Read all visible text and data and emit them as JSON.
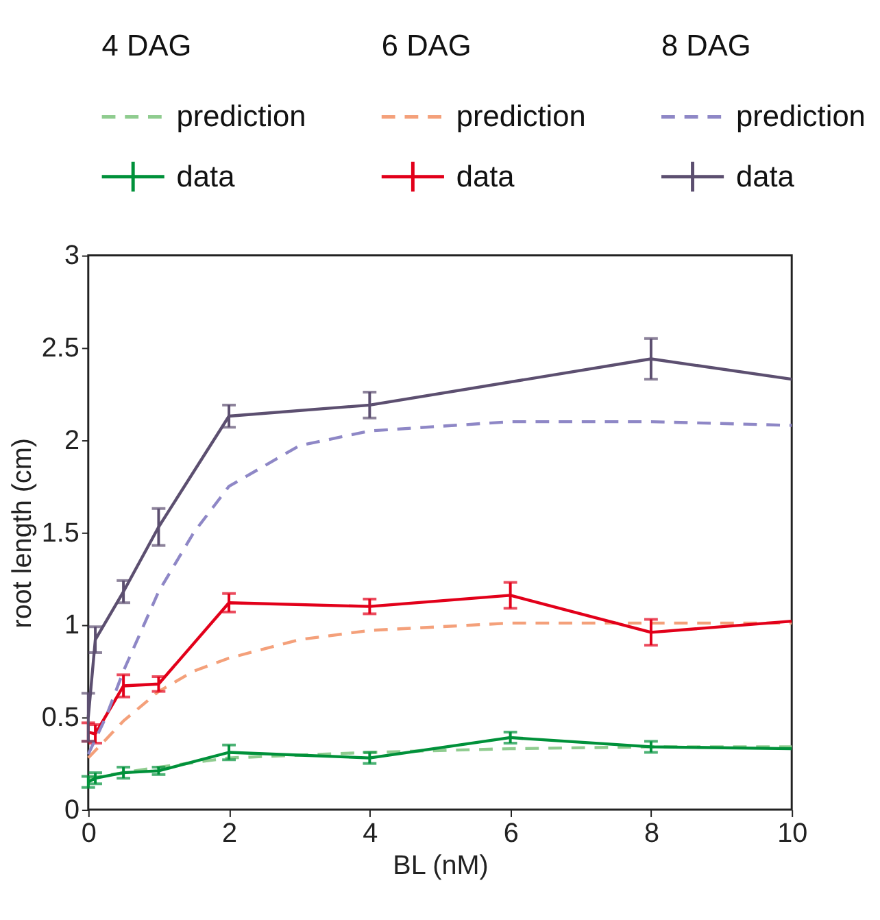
{
  "chart_data": {
    "type": "line",
    "xlabel": "BL (nM)",
    "ylabel": "root length  (cm)",
    "xlim": [
      0,
      10
    ],
    "ylim": [
      0,
      3
    ],
    "xticks": [
      0,
      2,
      4,
      6,
      8,
      10
    ],
    "yticks": [
      {
        "value": 0,
        "label": "0"
      },
      0.5,
      {
        "value": 1,
        "label": "1"
      },
      1.5,
      {
        "value": 2,
        "label": "2"
      },
      2.5,
      {
        "value": 3,
        "label": "3"
      }
    ],
    "grid": false,
    "legend": "top",
    "annotations": [
      "4 DAG",
      "6 DAG",
      "8 DAG"
    ],
    "series": [
      {
        "name": "prediction",
        "color": "#8fcc8f",
        "line_style": "dashed",
        "marker": "none",
        "x": [
          0,
          0.5,
          1,
          2,
          4,
          6,
          8,
          10
        ],
        "values": [
          0.17,
          0.2,
          0.23,
          0.28,
          0.31,
          0.33,
          0.34,
          0.34
        ]
      },
      {
        "name": "data",
        "color": "#00913a",
        "line_style": "solid",
        "marker": "none",
        "x": [
          0,
          0.1,
          0.5,
          1,
          2,
          4,
          6,
          8,
          10
        ],
        "values": [
          0.15,
          0.17,
          0.2,
          0.21,
          0.31,
          0.28,
          0.39,
          0.34,
          0.33
        ],
        "errors": [
          0.03,
          0.03,
          0.03,
          0.02,
          0.04,
          0.03,
          0.03,
          0.03,
          null
        ]
      },
      {
        "name": "prediction",
        "color": "#f4a07a",
        "line_style": "dashed",
        "marker": "none",
        "x": [
          0,
          0.25,
          0.5,
          1,
          1.5,
          2,
          3,
          4,
          6,
          8,
          10
        ],
        "values": [
          0.28,
          0.38,
          0.48,
          0.64,
          0.75,
          0.82,
          0.92,
          0.97,
          1.01,
          1.01,
          1.01
        ]
      },
      {
        "name": "data",
        "color": "#e2001a",
        "line_style": "solid",
        "marker": "none",
        "x": [
          0,
          0.1,
          0.5,
          1,
          2,
          4,
          6,
          8,
          10
        ],
        "values": [
          0.42,
          0.41,
          0.67,
          0.68,
          1.12,
          1.1,
          1.16,
          0.96,
          1.02
        ],
        "errors": [
          0.05,
          0.05,
          0.06,
          0.04,
          0.05,
          0.04,
          0.07,
          0.07,
          null
        ]
      },
      {
        "name": "prediction",
        "color": "#8e87c6",
        "line_style": "dashed",
        "marker": "none",
        "x": [
          0,
          0.25,
          0.5,
          1,
          1.5,
          2,
          3,
          4,
          6,
          8,
          10
        ],
        "values": [
          0.3,
          0.5,
          0.75,
          1.18,
          1.5,
          1.75,
          1.97,
          2.05,
          2.1,
          2.1,
          2.08
        ]
      },
      {
        "name": "data",
        "color": "#5c4f70",
        "line_style": "solid",
        "marker": "none",
        "x": [
          0,
          0.1,
          0.5,
          1,
          2,
          4,
          6,
          8,
          10
        ],
        "values": [
          0.5,
          0.92,
          1.18,
          1.53,
          2.13,
          2.19,
          null,
          2.44,
          2.33
        ],
        "errors": [
          0.13,
          0.07,
          0.06,
          0.1,
          0.06,
          0.07,
          null,
          0.11,
          null
        ]
      }
    ]
  }
}
